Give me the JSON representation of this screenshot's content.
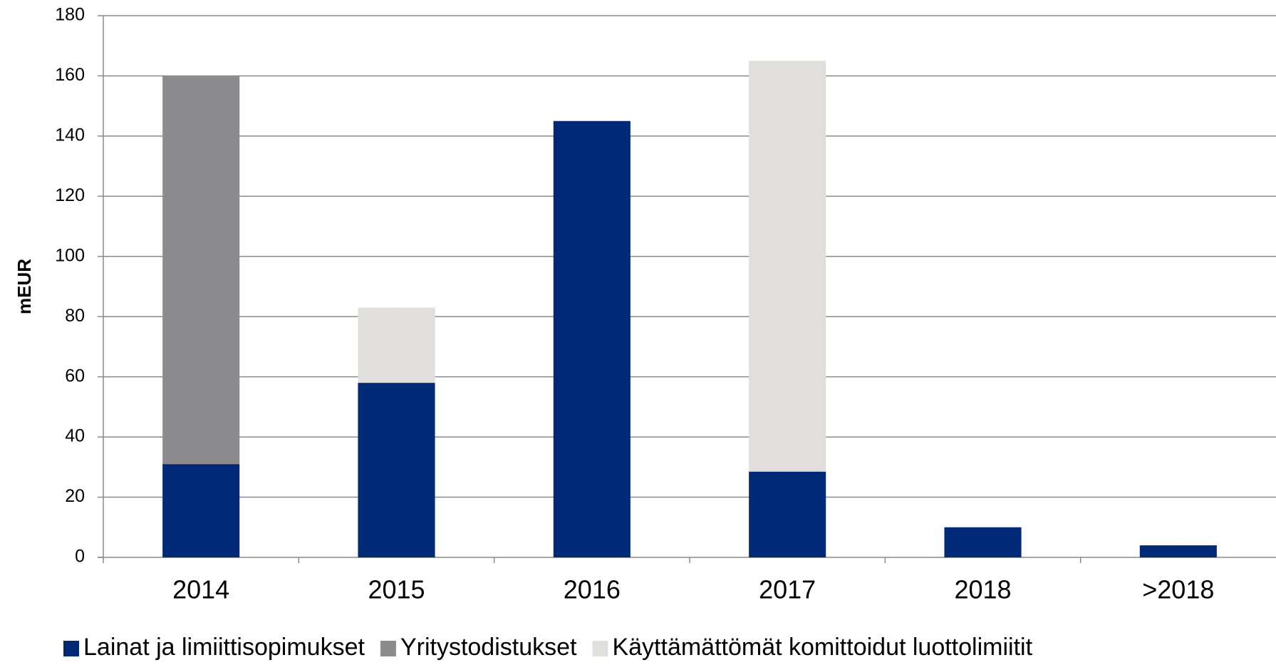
{
  "chart_data": {
    "type": "stacked_bar",
    "y_label": "mEUR",
    "categories": [
      "2014",
      "2015",
      "2016",
      "2017",
      "2018",
      ">2018"
    ],
    "series": [
      {
        "name": "Lainat ja limiittisopimukset",
        "color": "#002a77",
        "values": [
          31,
          58,
          145,
          28.5,
          10,
          4
        ]
      },
      {
        "name": "Yritystodistukset",
        "color": "#8c8c8e",
        "values": [
          129,
          0,
          0,
          0,
          0,
          0
        ]
      },
      {
        "name": "Käyttämättömät komittoidut luottolimiitit",
        "color": "#e0dfdb",
        "values": [
          0,
          25,
          0,
          136.5,
          0,
          0
        ]
      }
    ],
    "ylim": [
      0,
      180
    ],
    "yticks": [
      0,
      20,
      40,
      60,
      80,
      100,
      120,
      140,
      160,
      180
    ],
    "grid": true,
    "legend": "bottom"
  }
}
